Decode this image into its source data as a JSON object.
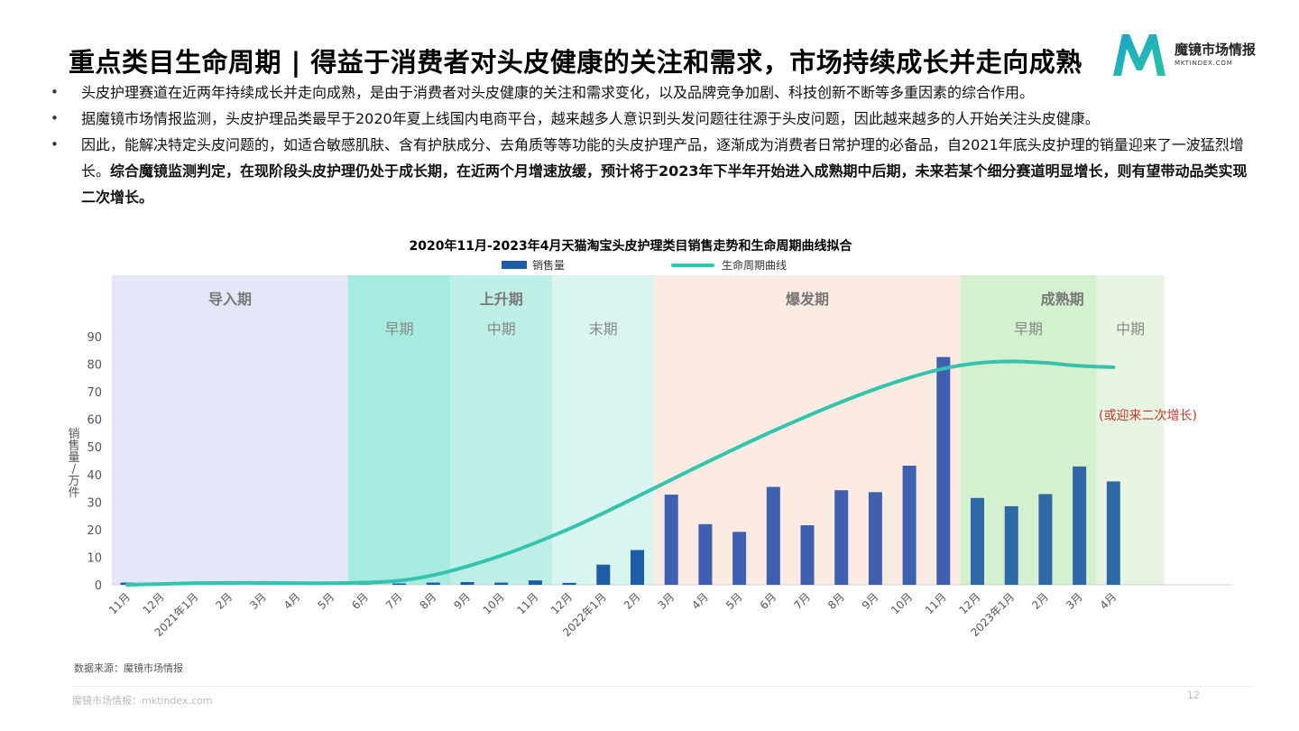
{
  "page": {
    "title": "重点类目生命周期 | 得益于消费者对头皮健康的关注和需求，市场持续成长并走向成熟",
    "logo": {
      "name": "魔镜市场情报",
      "url": "MKTINDEX.COM"
    },
    "bullets": [
      {
        "text": "头皮护理赛道在近两年持续成长并走向成熟，是由于消费者对头皮健康的关注和需求变化，以及品牌竞争加剧、科技创新不断等多重因素的综合作用。",
        "bold": ""
      },
      {
        "text": "据魔镜市场情报监测，头皮护理品类最早于2020年夏上线国内电商平台，越来越多人意识到头发问题往往源于头皮问题，因此越来越多的人开始关注头皮健康。",
        "bold": ""
      },
      {
        "text": "因此，能解决特定头皮问题的，如适合敏感肌肤、含有护肤成分、去角质等等功能的头皮护理产品，逐渐成为消费者日常护理的必备品，自2021年底头皮护理的销量迎来了一波猛烈增长。",
        "bold": "综合魔镜监测判定，在现阶段头皮护理仍处于成长期，在近两个月增速放缓，预计将于2023年下半年开始进入成熟期中后期，未来若某个细分赛道明显增长，则有望带动品类实现二次增长。"
      }
    ],
    "source": "数据来源：魔镜市场情报",
    "footer": "魔镜市场情报：mktindex.com",
    "page_number": "12"
  },
  "colors": {
    "bar": "#3f5fb0",
    "bar_dark": "#1f5ca8",
    "curve": "#34c4ae",
    "legend_bar": "#1f5ca8",
    "annotation": "#c0392b"
  },
  "chart_data": {
    "type": "bar",
    "title": "2020年11月-2023年4月天猫淘宝头皮护理类目销售走势和生命周期曲线拟合",
    "ylabel": "销售量/万件",
    "ylim": [
      0,
      90
    ],
    "yticks": [
      0,
      10,
      20,
      30,
      40,
      50,
      60,
      70,
      80,
      90
    ],
    "legend_position": "top-center",
    "categories": [
      "11月",
      "12月",
      "2021年1月",
      "2月",
      "3月",
      "4月",
      "5月",
      "6月",
      "7月",
      "8月",
      "9月",
      "10月",
      "11月",
      "12月",
      "2022年1月",
      "2月",
      "3月",
      "4月",
      "5月",
      "6月",
      "7月",
      "8月",
      "9月",
      "10月",
      "11月",
      "12月",
      "2023年1月",
      "2月",
      "3月",
      "4月"
    ],
    "series": [
      {
        "name": "销售量",
        "type": "bar",
        "values": [
          0.8,
          0.1,
          0.1,
          0.1,
          0.1,
          0.1,
          0.1,
          0.1,
          0.5,
          0.8,
          1.0,
          0.8,
          1.6,
          0.7,
          7.3,
          12.6,
          32.7,
          22.0,
          19.2,
          35.5,
          21.6,
          34.3,
          33.6,
          43.2,
          82.6,
          31.5,
          28.5,
          32.9,
          42.9,
          37.5
        ]
      },
      {
        "name": "生命周期曲线",
        "type": "line",
        "values": [
          0.0,
          0.3,
          0.6,
          0.7,
          0.7,
          0.6,
          0.6,
          0.8,
          1.5,
          3.5,
          6.7,
          10.6,
          15.2,
          20.3,
          26.0,
          32.0,
          38.1,
          44.2,
          50.1,
          55.8,
          61.2,
          66.3,
          71.0,
          75.1,
          78.4,
          80.4,
          81.0,
          80.5,
          79.4,
          78.9
        ]
      }
    ],
    "phases": [
      {
        "label": "导入期",
        "sub": "",
        "from": 0,
        "to": 7,
        "color": "#e4e7f7"
      },
      {
        "label": "",
        "sub": "早期",
        "from": 7,
        "to": 10,
        "color": "#a6ebdf"
      },
      {
        "label": "上升期",
        "sub": "中期",
        "from": 10,
        "to": 13,
        "color": "#bdefe6"
      },
      {
        "label": "",
        "sub": "末期",
        "from": 13,
        "to": 16,
        "color": "#d9f5f1"
      },
      {
        "label": "爆发期",
        "sub": "",
        "from": 16,
        "to": 25,
        "color": "#fcebe2"
      },
      {
        "label": "成熟期",
        "sub": "早期",
        "from": 25,
        "to": 29,
        "color": "#d3f0cf"
      },
      {
        "label": "",
        "sub": "中期",
        "from": 29,
        "to": 31,
        "color": "#e8f5e3"
      }
    ],
    "annotation": "(或迎来二次增长)"
  }
}
